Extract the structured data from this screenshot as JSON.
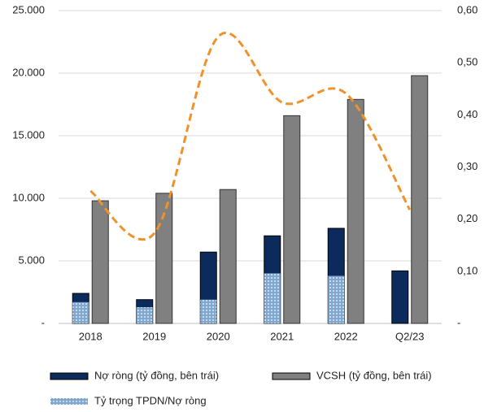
{
  "chart_data": {
    "type": "bar",
    "categories": [
      "2018",
      "2019",
      "2020",
      "2021",
      "2022",
      "Q2/23"
    ],
    "series": [
      {
        "name": "Nợ ròng (tỷ đồng, bên trái)",
        "color": "#0d2a5c",
        "values": [
          2400,
          1900,
          5700,
          7000,
          7600,
          4200
        ]
      },
      {
        "name": "VCSH (tỷ đồng, bên trái)",
        "color": "#808080",
        "values": [
          9800,
          10400,
          10700,
          16600,
          17900,
          19800
        ]
      },
      {
        "name": "Tỷ trọng TPDN/Nợ ròng",
        "color": "#7fa7cf",
        "values": [
          1700,
          1300,
          1900,
          4000,
          3800,
          0
        ]
      },
      {
        "type": "line",
        "axis": "y2",
        "color": "#f0922b",
        "values": [
          0.254,
          0.173,
          0.55,
          0.424,
          0.441,
          0.218
        ]
      }
    ],
    "ylim": [
      0,
      25000
    ],
    "yticks": [
      {
        "value": 0,
        "label": "-"
      },
      {
        "value": 5000,
        "label": "5.000"
      },
      {
        "value": 10000,
        "label": "10.000"
      },
      {
        "value": 15000,
        "label": "15.000"
      },
      {
        "value": 20000,
        "label": "20.000"
      },
      {
        "value": 25000,
        "label": "25.000"
      }
    ],
    "y2lim": [
      0,
      0.6
    ],
    "y2ticks": [
      {
        "value": 0,
        "label": "-"
      },
      {
        "value": 0.1,
        "label": "0,10"
      },
      {
        "value": 0.2,
        "label": "0,20"
      },
      {
        "value": 0.3,
        "label": "0,30"
      },
      {
        "value": 0.4,
        "label": "0,40"
      },
      {
        "value": 0.5,
        "label": "0,50"
      },
      {
        "value": 0.6,
        "label": "0,60"
      }
    ],
    "grid": true
  }
}
